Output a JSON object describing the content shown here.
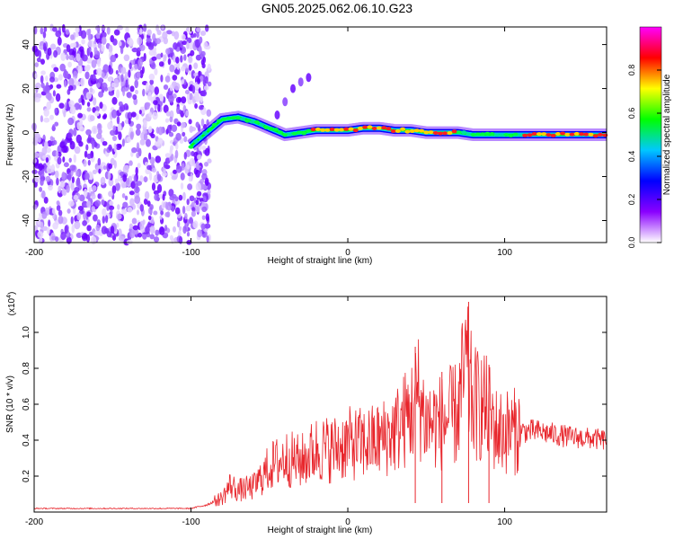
{
  "title": "GN05.2025.062.06.10.G23",
  "chart_data": [
    {
      "type": "heatmap",
      "xlabel": "Height of straight line (km)",
      "ylabel": "Frequency (Hz)",
      "xlim": [
        -200,
        165
      ],
      "ylim": [
        -50,
        48
      ],
      "xticks": [
        -200,
        -100,
        0,
        100
      ],
      "yticks": [
        -40,
        -20,
        0,
        20,
        40
      ],
      "colorbar": {
        "label": "Normalized spectral amplitude",
        "range": [
          0,
          1
        ],
        "ticks": [
          "0.0",
          "0.2",
          "0.4",
          "0.6",
          "0.8"
        ],
        "colormap": [
          "#ffffff",
          "#8a00ff",
          "#0000ff",
          "#00c8ff",
          "#00ff00",
          "#ffff00",
          "#ff0000",
          "#ff00ff"
        ]
      },
      "noise_region_x": [
        -200,
        -95
      ],
      "signal_track": {
        "x": [
          -100,
          -90,
          -80,
          -70,
          -60,
          -50,
          -40,
          -30,
          -20,
          -10,
          0,
          10,
          20,
          30,
          40,
          50,
          60,
          70,
          80,
          90,
          100,
          120,
          140,
          165
        ],
        "frequency": [
          -6,
          0,
          6,
          7,
          5,
          2,
          -1,
          0,
          1,
          1,
          1,
          2,
          2,
          1,
          1,
          0,
          0,
          0,
          -1,
          -1,
          -1,
          -1,
          -1,
          -1
        ]
      },
      "branch_track": {
        "x": [
          -45,
          -40,
          -35,
          -30,
          -25
        ],
        "frequency": [
          8,
          14,
          20,
          23,
          25
        ]
      },
      "grid": false,
      "title": "GN05.2025.062.06.10.G23"
    },
    {
      "type": "line",
      "xlabel": "Height of straight line (km)",
      "ylabel": "SNR (10 * v/v)",
      "yscale_label": "(x10",
      "yscale_exp": "4",
      "xlim": [
        -200,
        165
      ],
      "ylim": [
        0,
        1.2
      ],
      "xticks": [
        -200,
        -100,
        0,
        100
      ],
      "yticks": [
        "0.2",
        "0.4",
        "0.6",
        "0.8",
        "1.0"
      ],
      "series": [
        {
          "color": "#e8262c",
          "x": [
            -200,
            -180,
            -160,
            -140,
            -120,
            -100,
            -90,
            -80,
            -75,
            -70,
            -60,
            -50,
            -40,
            -30,
            -20,
            -10,
            0,
            10,
            20,
            30,
            40,
            45,
            50,
            60,
            70,
            75,
            80,
            85,
            90,
            95,
            100,
            110,
            120,
            140,
            165
          ],
          "y": [
            0.02,
            0.02,
            0.02,
            0.02,
            0.02,
            0.02,
            0.04,
            0.08,
            0.15,
            0.12,
            0.14,
            0.25,
            0.3,
            0.28,
            0.35,
            0.35,
            0.38,
            0.38,
            0.4,
            0.45,
            0.55,
            0.65,
            0.5,
            0.5,
            0.55,
            0.8,
            0.6,
            0.6,
            0.55,
            0.45,
            0.45,
            0.45,
            0.45,
            0.42,
            0.4
          ]
        }
      ],
      "peak_spikes": [
        {
          "x": 43,
          "y": 0.92
        },
        {
          "x": 77,
          "y": 1.17
        },
        {
          "x": 90,
          "y": 0.82
        },
        {
          "x": 60,
          "y": 0.78
        }
      ],
      "grid": false
    }
  ]
}
